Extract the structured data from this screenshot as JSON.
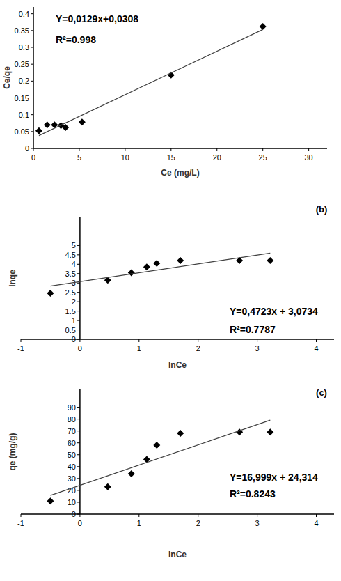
{
  "chart_data": [
    {
      "type": "scatter",
      "x_label": "Ce (mg/L)",
      "y_label": "Ce/qe",
      "xlim": [
        0,
        32
      ],
      "ylim": [
        0,
        0.42
      ],
      "xticks": [
        0,
        5,
        10,
        15,
        20,
        25,
        30
      ],
      "yticks": [
        0,
        0.05,
        0.1,
        0.15,
        0.2,
        0.25,
        0.3,
        0.35,
        0.4
      ],
      "grid": false,
      "annotations": [
        "Y=0,0129x+0,0308",
        "R²=0.998"
      ],
      "series": [
        {
          "type": "scatter",
          "marker": "diamond",
          "color": "#000000",
          "x": [
            0.6,
            1.5,
            2.3,
            3.0,
            3.5,
            5.3,
            15,
            25
          ],
          "values": [
            0.052,
            0.07,
            0.07,
            0.068,
            0.062,
            0.078,
            0.218,
            0.362
          ]
        },
        {
          "type": "line",
          "line_style": "solid",
          "color": "#404040",
          "x": [
            0.6,
            25
          ],
          "values": [
            0.038,
            0.353
          ]
        }
      ]
    },
    {
      "type": "scatter",
      "title": "(b)",
      "x_label": "lnCe",
      "y_label": "lnqe",
      "xlim": [
        -1,
        4.3
      ],
      "ylim": [
        0,
        6.5
      ],
      "xticks": [
        -1,
        0,
        1,
        2,
        3,
        4
      ],
      "yticks": [
        0,
        0.5,
        1,
        1.5,
        2,
        2.5,
        3,
        3.5,
        4,
        4.5,
        5
      ],
      "grid": false,
      "annotations": [
        "Y=0,4723x + 3,0734",
        "R²=0.7787"
      ],
      "series": [
        {
          "type": "scatter",
          "marker": "diamond",
          "color": "#000000",
          "x": [
            -0.5,
            0.47,
            0.87,
            1.13,
            1.3,
            1.7,
            2.7,
            3.22
          ],
          "values": [
            2.45,
            3.15,
            3.55,
            3.85,
            4.05,
            4.2,
            4.2,
            4.2
          ]
        },
        {
          "type": "line",
          "line_style": "solid",
          "color": "#404040",
          "x": [
            -0.5,
            3.22
          ],
          "values": [
            2.84,
            4.59
          ]
        }
      ]
    },
    {
      "type": "scatter",
      "title": "(c)",
      "x_label": "lnCe",
      "y_label": "qe (mg/g)",
      "xlim": [
        -1,
        4.3
      ],
      "ylim": [
        0,
        105
      ],
      "xticks": [
        -1,
        0,
        1,
        2,
        3,
        4
      ],
      "yticks": [
        0,
        10,
        20,
        30,
        40,
        50,
        60,
        70,
        80,
        90
      ],
      "grid": false,
      "annotations": [
        "Y=16,999x + 24,314",
        "R²=0.8243"
      ],
      "series": [
        {
          "type": "scatter",
          "marker": "diamond",
          "color": "#000000",
          "x": [
            -0.5,
            0.47,
            0.87,
            1.13,
            1.3,
            1.7,
            2.7,
            3.22
          ],
          "values": [
            11,
            23,
            34,
            46,
            58,
            68,
            69,
            69
          ]
        },
        {
          "type": "line",
          "line_style": "solid",
          "color": "#404040",
          "x": [
            -0.5,
            3.22
          ],
          "values": [
            15.8,
            79.1
          ]
        }
      ]
    }
  ]
}
